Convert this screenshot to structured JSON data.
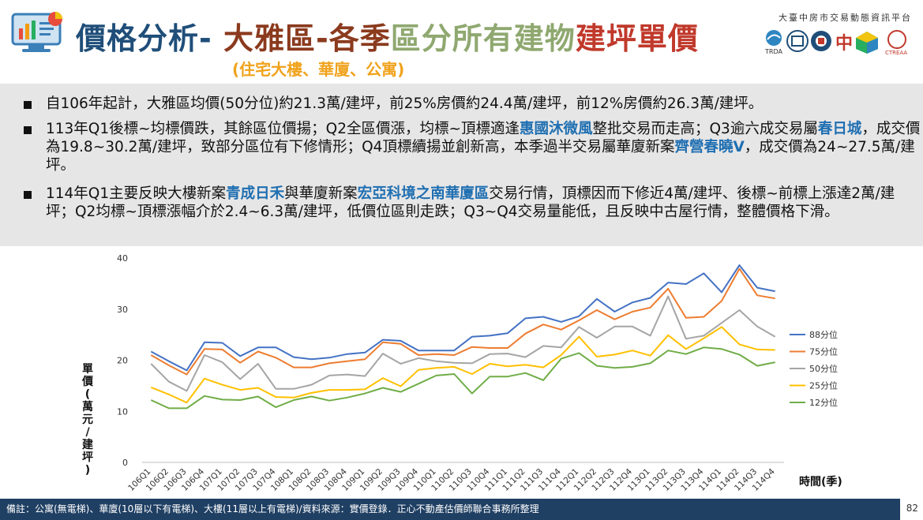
{
  "header": {
    "title_a": "價格分析- ",
    "title_b": "大雅區-各季",
    "title_c": "區分所有建物",
    "title_d": "建坪單價",
    "subtitle": "(住宅大樓、華廈、公寓)",
    "platform": "大臺中房市交易動態資訊平台",
    "org_logo_texts": [
      "TRDA",
      "中",
      "CTREAA"
    ]
  },
  "bullets": [
    {
      "parts": [
        {
          "t": "自106年起計，大雅區均價(50分位)約21.3萬/建坪，前25%房價約24.4萬/建坪，前12%房價約26.3萬/建坪。",
          "h": false
        }
      ]
    },
    {
      "parts": [
        {
          "t": "113年Q1後標~均標價跌，其餘區位價揚；Q2全區價漲，均標~頂標適逢",
          "h": false
        },
        {
          "t": "惠國沐微風",
          "h": true
        },
        {
          "t": "整批交易而走高；Q3逾六成交易屬",
          "h": false
        },
        {
          "t": "春日城",
          "h": true
        },
        {
          "t": "，成交價為19.8~30.2萬/建坪，致部分區位有下修情形；Q4頂標續揚並創新高，本季過半交易屬華廈新案",
          "h": false
        },
        {
          "t": "齊營春曉V",
          "h": true
        },
        {
          "t": "，成交價為24~27.5萬/建坪。",
          "h": false
        }
      ]
    },
    {
      "parts": [
        {
          "t": "114年Q1主要反映大樓新案",
          "h": false
        },
        {
          "t": "青成日禾",
          "h": true
        },
        {
          "t": "與華廈新案",
          "h": false
        },
        {
          "t": "宏亞科境之南華廈區",
          "h": true
        },
        {
          "t": "交易行情，頂標因而下修近4萬/建坪、後標~前標上漲達2萬/建坪；Q2均標~頂標漲幅介於2.4~6.3萬/建坪，低價位區則走跌；Q3~Q4交易量能低，且反映中古屋行情，整體價格下滑。",
          "h": false
        }
      ]
    }
  ],
  "footer": "備註：公寓(無電梯)、華廈(10層以下有電梯)、大樓(11層以上有電梯)/資料來源：實價登錄．正心不動產估價師聯合事務所整理",
  "page_number": "82",
  "chart_data": {
    "type": "line",
    "ylabel": "單價(萬元/建坪)",
    "xlabel": "時間(季)",
    "ylim": [
      0,
      40
    ],
    "yticks": [
      0,
      10,
      20,
      30,
      40
    ],
    "grid": false,
    "legend": "right",
    "x": [
      "106Q1",
      "106Q2",
      "106Q3",
      "106Q4",
      "107Q1",
      "107Q2",
      "107Q3",
      "107Q4",
      "108Q1",
      "108Q2",
      "108Q3",
      "108Q4",
      "109Q1",
      "109Q2",
      "109Q3",
      "109Q4",
      "110Q1",
      "110Q2",
      "110Q3",
      "110Q4",
      "111Q1",
      "111Q2",
      "111Q3",
      "111Q4",
      "112Q1",
      "112Q2",
      "112Q3",
      "112Q4",
      "113Q1",
      "113Q2",
      "113Q3",
      "113Q4",
      "114Q1",
      "114Q2",
      "114Q3",
      "114Q4"
    ],
    "series": [
      {
        "name": "88分位",
        "color": "#4472c4",
        "values": [
          21.7,
          19.8,
          18.0,
          23.5,
          23.4,
          20.8,
          22.5,
          22.5,
          20.6,
          20.2,
          20.5,
          21.2,
          21.5,
          24.0,
          23.8,
          21.9,
          21.9,
          21.9,
          24.6,
          24.8,
          25.3,
          28.2,
          28.5,
          27.5,
          28.6,
          32.0,
          29.5,
          31.3,
          32.2,
          35.2,
          34.9,
          37.0,
          33.3,
          38.6,
          34.2,
          33.5
        ]
      },
      {
        "name": "75分位",
        "color": "#ed7d31",
        "values": [
          21.0,
          19.0,
          17.2,
          22.2,
          22.1,
          19.5,
          21.7,
          20.5,
          18.6,
          18.6,
          19.4,
          19.8,
          20.2,
          23.5,
          23.2,
          21.0,
          21.2,
          21.0,
          22.6,
          22.4,
          22.4,
          25.2,
          27.0,
          26.0,
          27.8,
          29.8,
          28.0,
          29.5,
          30.3,
          34.0,
          28.3,
          28.5,
          31.6,
          37.9,
          32.7,
          32.1
        ]
      },
      {
        "name": "50分位",
        "color": "#a5a5a5",
        "values": [
          19.3,
          15.8,
          14.0,
          21.0,
          19.6,
          16.3,
          19.3,
          14.4,
          14.4,
          15.2,
          17.0,
          17.2,
          16.9,
          21.3,
          19.3,
          20.4,
          19.8,
          19.5,
          19.4,
          21.2,
          21.3,
          20.6,
          22.8,
          22.5,
          26.5,
          24.4,
          26.6,
          26.6,
          24.8,
          32.5,
          24.2,
          24.8,
          27.3,
          29.8,
          26.6,
          24.6
        ]
      },
      {
        "name": "25分位",
        "color": "#ffc000",
        "values": [
          14.7,
          13.3,
          11.7,
          16.4,
          15.2,
          14.2,
          14.6,
          12.8,
          12.7,
          13.6,
          14.2,
          14.2,
          14.3,
          16.5,
          14.9,
          18.1,
          18.5,
          18.7,
          17.3,
          19.3,
          18.8,
          19.1,
          18.6,
          21.0,
          24.6,
          20.7,
          21.1,
          21.9,
          20.9,
          24.9,
          22.2,
          24.3,
          26.5,
          23.1,
          22.1,
          22.0
        ]
      },
      {
        "name": "12分位",
        "color": "#70ad47",
        "values": [
          12.2,
          10.6,
          10.6,
          13.0,
          12.3,
          12.2,
          12.9,
          10.8,
          12.2,
          12.9,
          12.1,
          12.7,
          13.5,
          14.6,
          13.8,
          15.4,
          17.0,
          17.3,
          13.5,
          16.8,
          16.8,
          17.5,
          16.1,
          20.3,
          21.4,
          18.9,
          18.5,
          18.7,
          19.4,
          21.9,
          21.2,
          22.5,
          22.2,
          21.1,
          18.9,
          19.6
        ]
      }
    ]
  }
}
